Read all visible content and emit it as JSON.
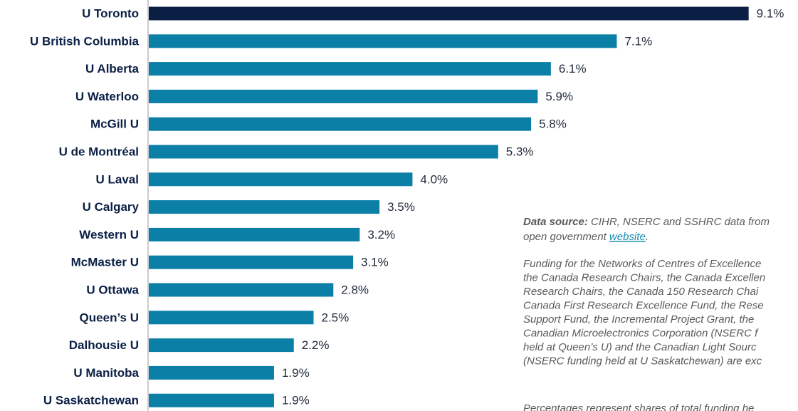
{
  "chart_data": {
    "type": "bar",
    "orientation": "horizontal",
    "categories": [
      "U Toronto",
      "U British Columbia",
      "U Alberta",
      "U Waterloo",
      "McGill U",
      "U de Montréal",
      "U Laval",
      "U Calgary",
      "Western U",
      "McMaster U",
      "U Ottawa",
      "Queen’s U",
      "Dalhousie U",
      "U Manitoba",
      "U Saskatchewan"
    ],
    "values": [
      9.1,
      7.1,
      6.1,
      5.9,
      5.8,
      5.3,
      4.0,
      3.5,
      3.2,
      3.1,
      2.8,
      2.5,
      2.2,
      1.9,
      1.9
    ],
    "value_labels": [
      "9.1%",
      "7.1%",
      "6.1%",
      "5.9%",
      "5.8%",
      "5.3%",
      "4.0%",
      "3.5%",
      "3.2%",
      "3.1%",
      "2.8%",
      "2.5%",
      "2.2%",
      "1.9%",
      "1.9%"
    ],
    "colors": [
      "#0b1f45",
      "#0b7fa6",
      "#0b7fa6",
      "#0b7fa6",
      "#0b7fa6",
      "#0b7fa6",
      "#0b7fa6",
      "#0b7fa6",
      "#0b7fa6",
      "#0b7fa6",
      "#0b7fa6",
      "#0b7fa6",
      "#0b7fa6",
      "#0b7fa6",
      "#0b7fa6"
    ],
    "note": {
      "source_label": "Data source:",
      "source_text": " CIHR, NSERC and SSHRC data from",
      "source_text2": "open government ",
      "link": "website",
      "link_end": ".",
      "paragraph": [
        "Funding for the Networks of Centres of Excellence",
        "the Canada Research Chairs, the Canada Excellen",
        "Research Chairs, the Canada 150 Research Chai",
        "Canada First Research Excellence Fund, the Rese",
        "Support Fund, the Incremental Project Grant, the",
        "Canadian Microelectronics Corporation (NSERC f",
        "held at Queen’s U) and the Canadian Light Sourc",
        "(NSERC funding held at U Saskatchewan) are exc"
      ],
      "last": "Percentages represent shares of total funding he"
    }
  }
}
